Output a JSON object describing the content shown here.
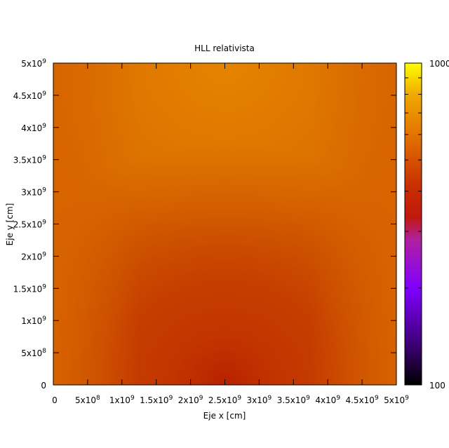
{
  "chart_data": {
    "type": "heatmap",
    "title": "HLL relativista",
    "xlabel": "Eje x [cm]",
    "ylabel": "Eje y [cm]",
    "xlim": [
      0,
      5000000000
    ],
    "ylim": [
      0,
      5000000000
    ],
    "x_ticks": [
      {
        "value": 0,
        "mant": "0",
        "exp": ""
      },
      {
        "value": 500000000,
        "mant": "5x10",
        "exp": "8"
      },
      {
        "value": 1000000000,
        "mant": "1x10",
        "exp": "9"
      },
      {
        "value": 1500000000,
        "mant": "1.5x10",
        "exp": "9"
      },
      {
        "value": 2000000000,
        "mant": "2x10",
        "exp": "9"
      },
      {
        "value": 2500000000,
        "mant": "2.5x10",
        "exp": "9"
      },
      {
        "value": 3000000000,
        "mant": "3x10",
        "exp": "9"
      },
      {
        "value": 3500000000,
        "mant": "3.5x10",
        "exp": "9"
      },
      {
        "value": 4000000000,
        "mant": "4x10",
        "exp": "9"
      },
      {
        "value": 4500000000,
        "mant": "4.5x10",
        "exp": "9"
      },
      {
        "value": 5000000000,
        "mant": "5x10",
        "exp": "9"
      }
    ],
    "y_ticks": [
      {
        "value": 0,
        "mant": "0",
        "exp": ""
      },
      {
        "value": 500000000,
        "mant": "5x10",
        "exp": "8"
      },
      {
        "value": 1000000000,
        "mant": "1x10",
        "exp": "9"
      },
      {
        "value": 1500000000,
        "mant": "1.5x10",
        "exp": "9"
      },
      {
        "value": 2000000000,
        "mant": "2x10",
        "exp": "9"
      },
      {
        "value": 2500000000,
        "mant": "2.5x10",
        "exp": "9"
      },
      {
        "value": 3000000000,
        "mant": "3x10",
        "exp": "9"
      },
      {
        "value": 3500000000,
        "mant": "3.5x10",
        "exp": "9"
      },
      {
        "value": 4000000000,
        "mant": "4x10",
        "exp": "9"
      },
      {
        "value": 4500000000,
        "mant": "4.5x10",
        "exp": "9"
      },
      {
        "value": 5000000000,
        "mant": "5x10",
        "exp": "9"
      }
    ],
    "colorbar": {
      "scale": "log",
      "range": [
        100,
        1000
      ],
      "min_label": "100",
      "max_label": "1000",
      "palette": [
        "#000000",
        "#400080",
        "#8000ff",
        "#b020b0",
        "#c02010",
        "#d04000",
        "#e07000",
        "#f0a000",
        "#ffff00"
      ]
    },
    "field_description_colors": {
      "background": "#d25e00",
      "bright_lobe": "#e07800",
      "dark_lobe": "#c23a00"
    },
    "grid": false
  }
}
